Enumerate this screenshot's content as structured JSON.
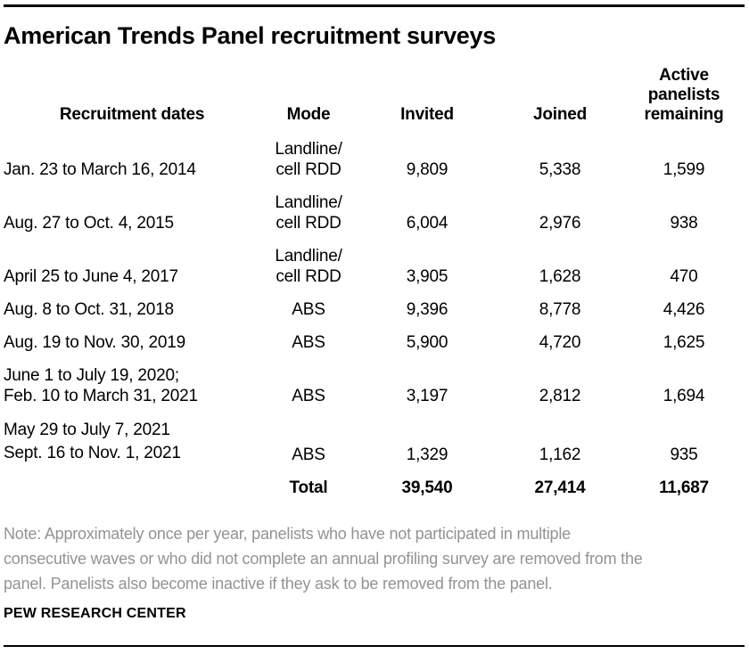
{
  "title": "American Trends Panel recruitment surveys",
  "table": {
    "columns": [
      "Recruitment dates",
      "Mode",
      "Invited",
      "Joined",
      "Active panelists remaining"
    ],
    "rows": [
      {
        "dates": "Jan. 23 to March 16, 2014",
        "mode": "Landline/\ncell RDD",
        "invited": "9,809",
        "joined": "5,338",
        "active": "1,599"
      },
      {
        "dates": "Aug. 27 to Oct. 4, 2015",
        "mode": "Landline/\ncell RDD",
        "invited": "6,004",
        "joined": "2,976",
        "active": "938"
      },
      {
        "dates": "April 25 to June 4, 2017",
        "mode": "Landline/\ncell RDD",
        "invited": "3,905",
        "joined": "1,628",
        "active": "470"
      },
      {
        "dates": "Aug. 8 to Oct. 31, 2018",
        "mode": "ABS",
        "invited": "9,396",
        "joined": "8,778",
        "active": "4,426"
      },
      {
        "dates": "Aug. 19 to Nov. 30, 2019",
        "mode": "ABS",
        "invited": "5,900",
        "joined": "4,720",
        "active": "1,625"
      },
      {
        "dates": "June 1 to July 19, 2020;\nFeb. 10 to March 31, 2021",
        "mode": "ABS",
        "invited": "3,197",
        "joined": "2,812",
        "active": "1,694"
      },
      {
        "dates": "May 29 to July 7, 2021\nSept. 16 to Nov. 1, 2021",
        "mode": "ABS",
        "invited": "1,329",
        "joined": "1,162",
        "active": "935"
      }
    ],
    "total": {
      "label": "Total",
      "invited": "39,540",
      "joined": "27,414",
      "active": "11,687"
    }
  },
  "note": "Note: Approximately once per year, panelists who have not participated in multiple\nconsecutive waves or who did not complete an annual profiling survey are removed from the\npanel. Panelists also become inactive if they ask to be removed from the panel.",
  "source": "PEW RESEARCH CENTER",
  "colors": {
    "text": "#000000",
    "note_gray": "#939393",
    "rule": "#000000",
    "background": "#ffffff"
  },
  "chart_data": {
    "type": "table",
    "title": "American Trends Panel recruitment surveys",
    "columns": [
      "Recruitment dates",
      "Mode",
      "Invited",
      "Joined",
      "Active panelists remaining"
    ],
    "rows": [
      {
        "recruitment_dates": "Jan. 23 to March 16, 2014",
        "mode": "Landline/cell RDD",
        "invited": 9809,
        "joined": 5338,
        "active_panelists_remaining": 1599
      },
      {
        "recruitment_dates": "Aug. 27 to Oct. 4, 2015",
        "mode": "Landline/cell RDD",
        "invited": 6004,
        "joined": 2976,
        "active_panelists_remaining": 938
      },
      {
        "recruitment_dates": "April 25 to June 4, 2017",
        "mode": "Landline/cell RDD",
        "invited": 3905,
        "joined": 1628,
        "active_panelists_remaining": 470
      },
      {
        "recruitment_dates": "Aug. 8 to Oct. 31, 2018",
        "mode": "ABS",
        "invited": 9396,
        "joined": 8778,
        "active_panelists_remaining": 4426
      },
      {
        "recruitment_dates": "Aug. 19 to Nov. 30, 2019",
        "mode": "ABS",
        "invited": 5900,
        "joined": 4720,
        "active_panelists_remaining": 1625
      },
      {
        "recruitment_dates": "June 1 to July 19, 2020; Feb. 10 to March 31, 2021",
        "mode": "ABS",
        "invited": 3197,
        "joined": 2812,
        "active_panelists_remaining": 1694
      },
      {
        "recruitment_dates": "May 29 to July 7, 2021; Sept. 16 to Nov. 1, 2021",
        "mode": "ABS",
        "invited": 1329,
        "joined": 1162,
        "active_panelists_remaining": 935
      }
    ],
    "totals": {
      "invited": 39540,
      "joined": 27414,
      "active_panelists_remaining": 11687
    },
    "note": "Note: Approximately once per year, panelists who have not participated in multiple consecutive waves or who did not complete an annual profiling survey are removed from the panel. Panelists also become inactive if they ask to be removed from the panel.",
    "source": "PEW RESEARCH CENTER"
  }
}
